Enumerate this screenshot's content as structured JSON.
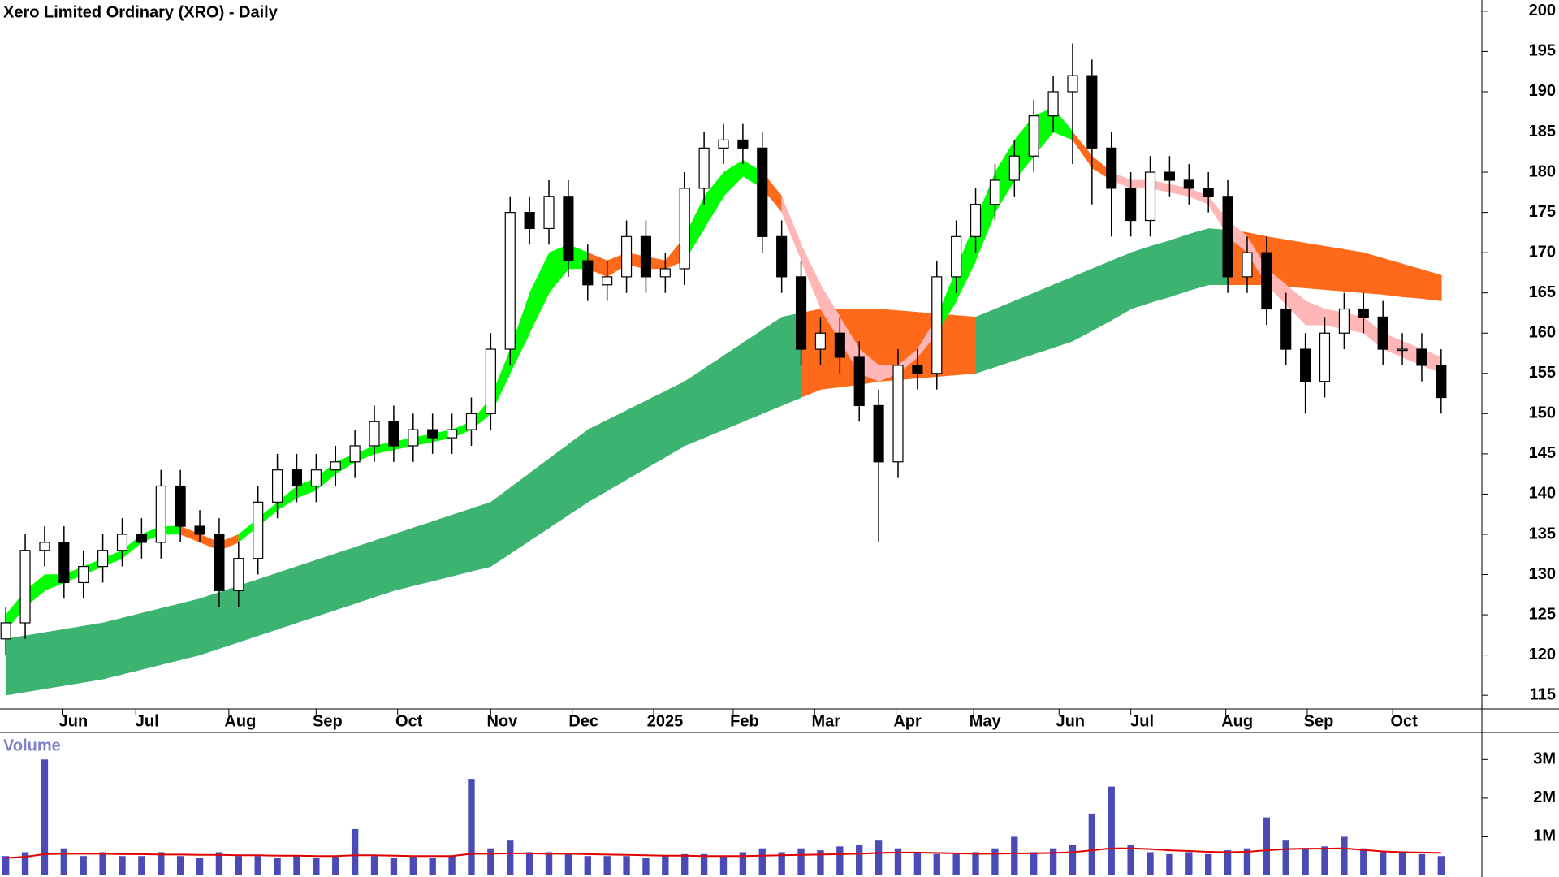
{
  "chart_data": {
    "type": "candlestick",
    "title": "Xero Limited Ordinary (XRO) - Daily",
    "categories": [
      null,
      null,
      null,
      null,
      null,
      null,
      null,
      null,
      null,
      null,
      null,
      null,
      null,
      null,
      null,
      null,
      null,
      null,
      null,
      null,
      null,
      null,
      null,
      null,
      null,
      null,
      null,
      null,
      null,
      null,
      null,
      null,
      null,
      null,
      null,
      null,
      null,
      null,
      null,
      null,
      null,
      null,
      null,
      null,
      null,
      null,
      null,
      null,
      null,
      null,
      null,
      null,
      null,
      null,
      null,
      null,
      null,
      null,
      null,
      null,
      null,
      null,
      null,
      null,
      null,
      null,
      null,
      null,
      null,
      null,
      null,
      null,
      null,
      null,
      null
    ],
    "open": [
      122,
      124,
      133,
      134,
      129,
      131,
      133,
      135,
      134,
      141,
      136,
      135,
      128,
      132,
      139,
      143,
      141,
      143,
      144,
      146,
      149,
      146,
      148,
      147,
      148,
      150,
      158,
      175,
      173,
      177,
      169,
      166,
      167,
      172,
      167,
      168,
      178,
      183,
      184,
      183,
      172,
      167,
      158,
      160,
      157,
      151,
      144,
      156,
      155,
      167,
      172,
      176,
      179,
      182,
      187,
      190,
      192,
      183,
      178,
      174,
      180,
      179,
      178,
      177,
      167,
      170,
      163,
      158,
      154,
      160,
      163,
      162,
      158,
      158,
      156
    ],
    "high": [
      126,
      135,
      136,
      136,
      133,
      135,
      137,
      137,
      143,
      143,
      138,
      137,
      134,
      141,
      145,
      145,
      145,
      146,
      148,
      151,
      151,
      150,
      150,
      150,
      152,
      160,
      177,
      177,
      179,
      179,
      171,
      169,
      174,
      174,
      170,
      180,
      185,
      186,
      186,
      185,
      174,
      169,
      162,
      162,
      159,
      153,
      158,
      158,
      169,
      174,
      178,
      181,
      184,
      189,
      192,
      196,
      194,
      185,
      180,
      182,
      182,
      181,
      180,
      179,
      172,
      172,
      165,
      160,
      162,
      165,
      165,
      164,
      160,
      160,
      158
    ],
    "low": [
      120,
      122,
      131,
      127,
      127,
      129,
      131,
      132,
      132,
      134,
      134,
      126,
      126,
      130,
      137,
      139,
      139,
      141,
      142,
      144,
      144,
      144,
      145,
      145,
      146,
      148,
      156,
      171,
      171,
      167,
      164,
      164,
      165,
      165,
      165,
      166,
      176,
      181,
      181,
      170,
      165,
      156,
      156,
      155,
      149,
      134,
      142,
      153,
      153,
      165,
      170,
      174,
      177,
      180,
      185,
      181,
      176,
      172,
      172,
      172,
      177,
      176,
      175,
      165,
      165,
      161,
      156,
      150,
      152,
      158,
      160,
      156,
      156,
      154,
      150
    ],
    "close": [
      124,
      133,
      134,
      129,
      131,
      133,
      135,
      134,
      141,
      136,
      135,
      128,
      132,
      139,
      143,
      141,
      143,
      144,
      146,
      149,
      146,
      148,
      147,
      148,
      150,
      158,
      175,
      173,
      177,
      169,
      166,
      167,
      172,
      167,
      168,
      178,
      183,
      184,
      183,
      172,
      167,
      158,
      160,
      157,
      151,
      144,
      156,
      155,
      167,
      172,
      176,
      179,
      182,
      187,
      190,
      192,
      183,
      178,
      174,
      180,
      179,
      178,
      177,
      167,
      170,
      163,
      158,
      154,
      160,
      163,
      162,
      158,
      158,
      156,
      152
    ],
    "up_color": "#ffffff",
    "down_color": "#000000",
    "bands": [
      {
        "upper": [
          122,
          122.4,
          122.8,
          123.2,
          123.6,
          124,
          124.6,
          125.2,
          125.8,
          126.4,
          127,
          127.8,
          128.6,
          129.4,
          130.2,
          131,
          131.8,
          132.6,
          133.4,
          134.2,
          135,
          135.8,
          136.6,
          137.4,
          138.2,
          139,
          140.8,
          142.6,
          144.4,
          146.2,
          148,
          149.2,
          150.4,
          151.6,
          152.8,
          154,
          155.6,
          157.2,
          158.8,
          160.4,
          162,
          162.5,
          163,
          163,
          163,
          163,
          162.8,
          162.6,
          162.4,
          162.2,
          162,
          163,
          164,
          165,
          166,
          167,
          168,
          169,
          170,
          170.8,
          171.5,
          172.3,
          173,
          172.8,
          172.5,
          172,
          171.6,
          171.2,
          170.8,
          170.4,
          170,
          169.3,
          168.6,
          167.9,
          167.2
        ],
        "lower": [
          115,
          115.4,
          115.8,
          116.2,
          116.6,
          117,
          117.6,
          118.2,
          118.8,
          119.4,
          120,
          120.8,
          121.6,
          122.4,
          123.2,
          124,
          124.8,
          125.6,
          126.4,
          127.2,
          128,
          128.6,
          129.2,
          129.8,
          130.4,
          131,
          132.6,
          134.2,
          135.8,
          137.4,
          139,
          140.4,
          141.8,
          143.2,
          144.6,
          146,
          147,
          148,
          149,
          150,
          151,
          152,
          153,
          153.3,
          153.6,
          154,
          154.2,
          154.4,
          154.6,
          154.8,
          155,
          155.8,
          156.6,
          157.4,
          158.2,
          159,
          160.3,
          161.6,
          163,
          163.8,
          164.5,
          165.3,
          166,
          166,
          166,
          166,
          165.8,
          165.6,
          165.4,
          165.2,
          165,
          164.8,
          164.5,
          164.3,
          164
        ],
        "colors": [
          "#3cb371",
          "#3cb371",
          "#3cb371",
          "#3cb371",
          "#3cb371",
          "#3cb371",
          "#3cb371",
          "#3cb371",
          "#3cb371",
          "#3cb371",
          "#3cb371",
          "#3cb371",
          "#3cb371",
          "#3cb371",
          "#3cb371",
          "#3cb371",
          "#3cb371",
          "#3cb371",
          "#3cb371",
          "#3cb371",
          "#3cb371",
          "#3cb371",
          "#3cb371",
          "#3cb371",
          "#3cb371",
          "#3cb371",
          "#3cb371",
          "#3cb371",
          "#3cb371",
          "#3cb371",
          "#3cb371",
          "#3cb371",
          "#3cb371",
          "#3cb371",
          "#3cb371",
          "#3cb371",
          "#3cb371",
          "#3cb371",
          "#3cb371",
          "#3cb371",
          "#3cb371",
          "#ff6a1a",
          "#ff6a1a",
          "#ff6a1a",
          "#ff6a1a",
          "#ff6a1a",
          "#ff6a1a",
          "#ff6a1a",
          "#ff6a1a",
          "#ff6a1a",
          "#3cb371",
          "#3cb371",
          "#3cb371",
          "#3cb371",
          "#3cb371",
          "#3cb371",
          "#3cb371",
          "#3cb371",
          "#3cb371",
          "#3cb371",
          "#3cb371",
          "#3cb371",
          "#3cb371",
          "#ff6a1a",
          "#ff6a1a",
          "#ff6a1a",
          "#ff6a1a",
          "#ff6a1a",
          "#ff6a1a",
          "#ff6a1a",
          "#ff6a1a",
          "#ff6a1a",
          "#ff6a1a",
          "#ff6a1a",
          "#ff6a1a"
        ]
      },
      {
        "upper": [
          125,
          128,
          130,
          130,
          131,
          132,
          133,
          135,
          136,
          136,
          135,
          134,
          135,
          137,
          139,
          141,
          142,
          144,
          145,
          146,
          146.5,
          147,
          147.5,
          148,
          149,
          152,
          158,
          165,
          170,
          171,
          170,
          169,
          170,
          169.5,
          169,
          172,
          177,
          180,
          181.5,
          180,
          177,
          171,
          166,
          162,
          158,
          156,
          156,
          158,
          162,
          168,
          174,
          180,
          184,
          187,
          188,
          185,
          182,
          180,
          179,
          179,
          178.5,
          178,
          177,
          174,
          172,
          168,
          166,
          164,
          163,
          162.5,
          162,
          160,
          159,
          158,
          157
        ],
        "lower": [
          123,
          126,
          128,
          129,
          130,
          131,
          132,
          134,
          135,
          135,
          134,
          133,
          134,
          136,
          138,
          139.5,
          140.5,
          142.5,
          144,
          145,
          145.5,
          146,
          146.5,
          147,
          148,
          150,
          155,
          160,
          165,
          168,
          168,
          167,
          168.5,
          168,
          168,
          169,
          173,
          177,
          179.5,
          178,
          175,
          169,
          163,
          159,
          155,
          154,
          155,
          157,
          160,
          164,
          169,
          175,
          179,
          182,
          185,
          184,
          180.5,
          179,
          178,
          178,
          177.5,
          177,
          176,
          172,
          170,
          166,
          163.5,
          161,
          161,
          160.5,
          160,
          158,
          157,
          156,
          155
        ],
        "colors": [
          "#00ff00",
          "#00ff00",
          "#00ff00",
          "#00ff00",
          "#00ff00",
          "#00ff00",
          "#00ff00",
          "#00ff00",
          "#00ff00",
          "#ff6a1a",
          "#ff6a1a",
          "#ff6a1a",
          "#00ff00",
          "#00ff00",
          "#00ff00",
          "#00ff00",
          "#00ff00",
          "#00ff00",
          "#00ff00",
          "#00ff00",
          "#00ff00",
          "#00ff00",
          "#00ff00",
          "#00ff00",
          "#00ff00",
          "#00ff00",
          "#00ff00",
          "#00ff00",
          "#00ff00",
          "#00ff00",
          "#ff6a1a",
          "#ff6a1a",
          "#ff6a1a",
          "#ff6a1a",
          "#ff6a1a",
          "#00ff00",
          "#00ff00",
          "#00ff00",
          "#00ff00",
          "#ff6a1a",
          "#ffb6b6",
          "#ffb6b6",
          "#ffb6b6",
          "#ffb6b6",
          "#ffb6b6",
          "#ffb6b6",
          "#ffb6b6",
          "#ffb6b6",
          "#00ff00",
          "#00ff00",
          "#00ff00",
          "#00ff00",
          "#00ff00",
          "#00ff00",
          "#00ff00",
          "#ff6a1a",
          "#ff6a1a",
          "#ffb6b6",
          "#ffb6b6",
          "#ffb6b6",
          "#ffb6b6",
          "#ffb6b6",
          "#ffb6b6",
          "#ffb6b6",
          "#ffb6b6",
          "#ffb6b6",
          "#ffb6b6",
          "#ffb6b6",
          "#ffb6b6",
          "#ffb6b6",
          "#ffb6b6",
          "#ffb6b6",
          "#ffb6b6",
          "#ffb6b6",
          "#ffb6b6"
        ]
      }
    ],
    "xlim": [
      -0.3,
      76.1
    ],
    "xticks": [
      {
        "value": 2.9,
        "label": "Jun"
      },
      {
        "value": 6.7,
        "label": "Jul"
      },
      {
        "value": 11.5,
        "label": "Aug"
      },
      {
        "value": 16,
        "label": "Sep"
      },
      {
        "value": 20.2,
        "label": "Oct"
      },
      {
        "value": 25,
        "label": "Nov"
      },
      {
        "value": 29.2,
        "label": "Dec"
      },
      {
        "value": 33.4,
        "label": "2025"
      },
      {
        "value": 37.5,
        "label": "Feb"
      },
      {
        "value": 41.7,
        "label": "Mar"
      },
      {
        "value": 45.9,
        "label": "Apr"
      },
      {
        "value": 49.9,
        "label": "May"
      },
      {
        "value": 54.3,
        "label": "Jun"
      },
      {
        "value": 58,
        "label": "Jul"
      },
      {
        "value": 62.9,
        "label": "Aug"
      },
      {
        "value": 67.1,
        "label": "Sep"
      },
      {
        "value": 71.5,
        "label": "Oct"
      }
    ],
    "ylim": [
      113.3,
      201.4
    ],
    "yticks": [
      115,
      120,
      125,
      130,
      135,
      140,
      145,
      150,
      155,
      160,
      165,
      170,
      175,
      180,
      185,
      190,
      195,
      200
    ],
    "volume": {
      "name": "Volume",
      "color": "#4b4bb8",
      "title_color": "#8080c8",
      "values": [
        500000,
        600000,
        3000000,
        700000,
        500000,
        600000,
        500000,
        500000,
        600000,
        500000,
        450000,
        600000,
        500000,
        500000,
        450000,
        500000,
        450000,
        500000,
        1200000,
        500000,
        450000,
        500000,
        450000,
        500000,
        2500000,
        700000,
        900000,
        600000,
        600000,
        550000,
        500000,
        500000,
        500000,
        450000,
        500000,
        550000,
        550000,
        500000,
        600000,
        700000,
        600000,
        700000,
        650000,
        750000,
        800000,
        900000,
        700000,
        600000,
        550000,
        550000,
        600000,
        700000,
        1000000,
        600000,
        700000,
        800000,
        1600000,
        2300000,
        800000,
        600000,
        550000,
        600000,
        550000,
        650000,
        700000,
        1500000,
        900000,
        700000,
        750000,
        1000000,
        700000,
        600000,
        600000,
        550000,
        500000
      ],
      "average": {
        "color": "#e00000",
        "values": [
          450000,
          480000,
          550000,
          560000,
          560000,
          560000,
          550000,
          550000,
          540000,
          540000,
          530000,
          530000,
          520000,
          520000,
          510000,
          510000,
          500000,
          500000,
          520000,
          520000,
          510000,
          500000,
          500000,
          500000,
          560000,
          560000,
          570000,
          570000,
          560000,
          560000,
          550000,
          540000,
          530000,
          520000,
          510000,
          510000,
          500000,
          500000,
          500000,
          510000,
          520000,
          530000,
          540000,
          550000,
          560000,
          580000,
          590000,
          590000,
          580000,
          570000,
          560000,
          560000,
          570000,
          570000,
          580000,
          600000,
          650000,
          700000,
          700000,
          680000,
          650000,
          630000,
          610000,
          600000,
          610000,
          650000,
          680000,
          690000,
          690000,
          700000,
          660000,
          620000,
          600000,
          590000,
          580000
        ]
      },
      "ylim": [
        0,
        3700000
      ],
      "yticks": [
        {
          "value": 1000000,
          "label": "1M"
        },
        {
          "value": 2000000,
          "label": "2M"
        },
        {
          "value": 3000000,
          "label": "3M"
        }
      ]
    }
  }
}
